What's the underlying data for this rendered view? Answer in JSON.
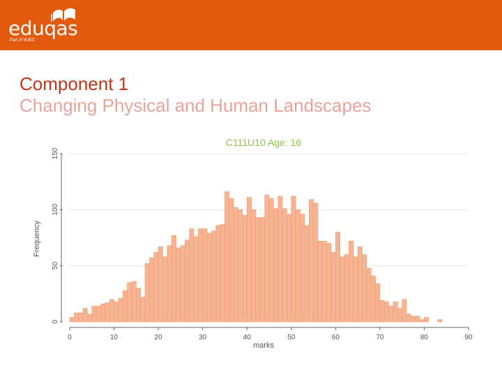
{
  "header": {
    "logo_text": "eduqas",
    "logo_subtext": "Part of WJEC",
    "logo_icon": "book-icon",
    "color": "#e35a0e"
  },
  "slide": {
    "title": "Component 1",
    "subtitle": "Changing Physical and Human Landscapes"
  },
  "chart_data": {
    "type": "bar",
    "title": "C111U10 Age: 16",
    "xlabel": "marks",
    "ylabel": "Frequency",
    "xlim": [
      0,
      90
    ],
    "ylim": [
      0,
      150
    ],
    "xticks": [
      "0",
      "10",
      "20",
      "30",
      "40",
      "50",
      "60",
      "70",
      "80",
      "90"
    ],
    "yticks": [
      "0",
      "50",
      "100",
      "150"
    ],
    "grid": true,
    "bar_color": "#f6b493",
    "bin_width": 1,
    "x": [
      0,
      1,
      2,
      3,
      4,
      5,
      6,
      7,
      8,
      9,
      10,
      11,
      12,
      13,
      14,
      15,
      16,
      17,
      18,
      19,
      20,
      21,
      22,
      23,
      24,
      25,
      26,
      27,
      28,
      29,
      30,
      31,
      32,
      33,
      34,
      35,
      36,
      37,
      38,
      39,
      40,
      41,
      42,
      43,
      44,
      45,
      46,
      47,
      48,
      49,
      50,
      51,
      52,
      53,
      54,
      55,
      56,
      57,
      58,
      59,
      60,
      61,
      62,
      63,
      64,
      65,
      66,
      67,
      68,
      69,
      70,
      71,
      72,
      73,
      74,
      75,
      76,
      77,
      78,
      79,
      80,
      81,
      82,
      83
    ],
    "values": [
      4,
      8,
      8,
      12,
      7,
      14,
      14,
      16,
      17,
      20,
      18,
      21,
      28,
      35,
      36,
      30,
      22,
      52,
      57,
      62,
      67,
      58,
      68,
      77,
      66,
      68,
      73,
      83,
      76,
      83,
      83,
      79,
      81,
      86,
      87,
      116,
      110,
      102,
      100,
      95,
      111,
      100,
      93,
      93,
      113,
      110,
      101,
      112,
      101,
      96,
      112,
      100,
      96,
      86,
      109,
      106,
      72,
      72,
      70,
      62,
      80,
      58,
      60,
      72,
      58,
      67,
      60,
      48,
      41,
      34,
      19,
      18,
      14,
      18,
      12,
      20,
      7,
      5,
      5,
      2,
      4,
      0,
      0,
      2
    ]
  }
}
